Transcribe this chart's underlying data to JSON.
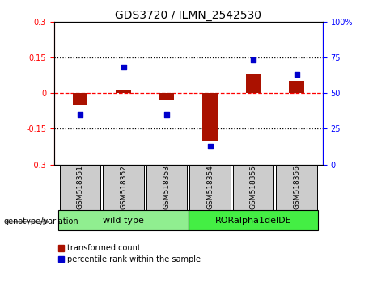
{
  "title": "GDS3720 / ILMN_2542530",
  "samples": [
    "GSM518351",
    "GSM518352",
    "GSM518353",
    "GSM518354",
    "GSM518355",
    "GSM518356"
  ],
  "red_values": [
    -0.05,
    0.012,
    -0.03,
    -0.2,
    0.08,
    0.05
  ],
  "blue_values": [
    35,
    68,
    35,
    13,
    73,
    63
  ],
  "ylim_left": [
    -0.3,
    0.3
  ],
  "ylim_right": [
    0,
    100
  ],
  "yticks_left": [
    -0.3,
    -0.15,
    0.0,
    0.15,
    0.3
  ],
  "yticks_right": [
    0,
    25,
    50,
    75,
    100
  ],
  "hlines_dotted": [
    0.15,
    -0.15
  ],
  "hline_red_dashed": 0.0,
  "group_labels": [
    "wild type",
    "RORalpha1delDE"
  ],
  "wild_type_indices": [
    0,
    1,
    2
  ],
  "ror_indices": [
    3,
    4,
    5
  ],
  "group_color_wt": "#90EE90",
  "group_color_ror": "#44EE44",
  "sample_box_color": "#CCCCCC",
  "bar_color": "#AA1100",
  "dot_color": "#0000CC",
  "bar_width": 0.35,
  "dot_size": 25,
  "legend_labels": [
    "transformed count",
    "percentile rank within the sample"
  ],
  "genotype_label": "genotype/variation",
  "title_fontsize": 10,
  "tick_fontsize": 7,
  "sample_fontsize": 6.5
}
